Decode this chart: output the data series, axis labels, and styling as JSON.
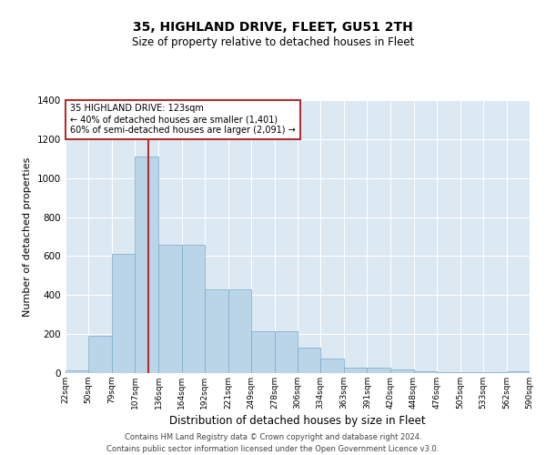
{
  "title": "35, HIGHLAND DRIVE, FLEET, GU51 2TH",
  "subtitle": "Size of property relative to detached houses in Fleet",
  "xlabel": "Distribution of detached houses by size in Fleet",
  "ylabel": "Number of detached properties",
  "annotation_title": "35 HIGHLAND DRIVE: 123sqm",
  "annotation_line1": "← 40% of detached houses are smaller (1,401)",
  "annotation_line2": "60% of semi-detached houses are larger (2,091) →",
  "property_size_sqm": 123,
  "bin_edges": [
    22,
    50,
    79,
    107,
    136,
    164,
    192,
    221,
    249,
    278,
    306,
    334,
    363,
    391,
    420,
    448,
    476,
    505,
    533,
    562,
    590
  ],
  "bar_heights": [
    15,
    190,
    610,
    1110,
    660,
    660,
    430,
    430,
    215,
    215,
    130,
    75,
    30,
    30,
    20,
    10,
    5,
    5,
    5,
    10
  ],
  "bar_color": "#bad4e8",
  "bar_edge_color": "#7aaac8",
  "vline_color": "#b03030",
  "vline_x": 123,
  "annotation_box_edge_color": "#b03030",
  "plot_bg_color": "#dce8f2",
  "fig_bg_color": "#ffffff",
  "ylim": [
    0,
    1400
  ],
  "yticks": [
    0,
    200,
    400,
    600,
    800,
    1000,
    1200,
    1400
  ],
  "footer": "Contains HM Land Registry data © Crown copyright and database right 2024.\nContains public sector information licensed under the Open Government Licence v3.0."
}
